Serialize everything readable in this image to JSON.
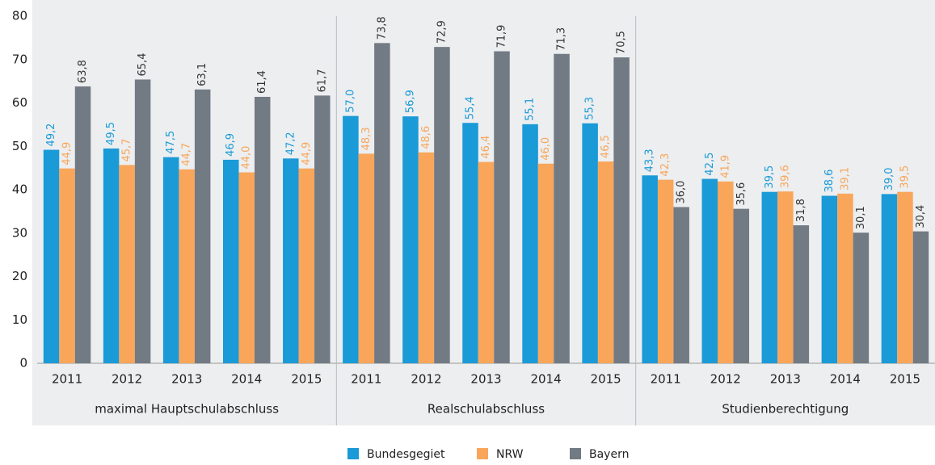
{
  "chart_data": {
    "type": "bar",
    "categories": [
      "2011",
      "2012",
      "2013",
      "2014",
      "2015",
      "2011",
      "2012",
      "2013",
      "2014",
      "2015",
      "2011",
      "2012",
      "2013",
      "2014",
      "2015"
    ],
    "groups": [
      "maximal Hauptschulabschluss",
      "Realschulabschluss",
      "Studienberechtigung"
    ],
    "series": [
      {
        "name": "Bundesgegiet",
        "color": "#1a9ad6",
        "values": [
          49.2,
          49.5,
          47.5,
          46.9,
          47.2,
          57.0,
          56.9,
          55.4,
          55.1,
          55.3,
          43.3,
          42.5,
          39.5,
          38.6,
          39.0
        ],
        "value_labels": [
          "49,2",
          "49,5",
          "47,5",
          "46,9",
          "47,2",
          "57,0",
          "56,9",
          "55,4",
          "55,1",
          "55,3",
          "43,3",
          "42,5",
          "39,5",
          "38,6",
          "39,0"
        ]
      },
      {
        "name": "NRW",
        "color": "#f9a65a",
        "values": [
          44.9,
          45.7,
          44.7,
          44.0,
          44.9,
          48.3,
          48.6,
          46.4,
          46.0,
          46.5,
          42.3,
          41.9,
          39.6,
          39.1,
          39.5
        ],
        "value_labels": [
          "44,9",
          "45,7",
          "44,7",
          "44,0",
          "44,9",
          "48,3",
          "48,6",
          "46,4",
          "46,0",
          "46,5",
          "42,3",
          "41,9",
          "39,6",
          "39,1",
          "39,5"
        ]
      },
      {
        "name": "Bayern",
        "color": "#727a84",
        "values": [
          63.8,
          65.4,
          63.1,
          61.4,
          61.7,
          73.8,
          72.9,
          71.9,
          71.3,
          70.5,
          36.0,
          35.6,
          31.8,
          30.1,
          30.4
        ],
        "value_labels": [
          "63,8",
          "65,4",
          "63,1",
          "61,4",
          "61,7",
          "73,8",
          "72,9",
          "71,9",
          "71,3",
          "70,5",
          "36,0",
          "35,6",
          "31,8",
          "30,1",
          "30,4"
        ]
      }
    ],
    "ylim": [
      0,
      80
    ],
    "yticks": [
      0,
      10,
      20,
      30,
      40,
      50,
      60,
      70,
      80
    ],
    "grid": false
  }
}
